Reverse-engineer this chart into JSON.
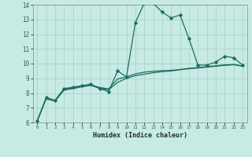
{
  "title": "",
  "xlabel": "Humidex (Indice chaleur)",
  "bg_color": "#c8eae4",
  "grid_color": "#a8d4cc",
  "line_color": "#1a6e5e",
  "xlim": [
    -0.5,
    23.5
  ],
  "ylim": [
    6,
    14
  ],
  "xticks": [
    0,
    1,
    2,
    3,
    4,
    5,
    6,
    7,
    8,
    9,
    10,
    11,
    12,
    13,
    14,
    15,
    16,
    17,
    18,
    19,
    20,
    21,
    22,
    23
  ],
  "yticks": [
    6,
    7,
    8,
    9,
    10,
    11,
    12,
    13,
    14
  ],
  "line1_x": [
    0,
    1,
    2,
    3,
    4,
    5,
    6,
    7,
    8,
    9,
    10,
    11,
    12,
    13,
    14,
    15,
    16,
    17,
    18,
    19,
    20,
    21,
    22,
    23
  ],
  "line1_y": [
    6.1,
    7.7,
    7.5,
    8.3,
    8.4,
    8.5,
    8.6,
    8.3,
    8.1,
    9.5,
    9.1,
    12.8,
    14.1,
    14.1,
    13.5,
    13.1,
    13.3,
    11.7,
    9.9,
    9.9,
    10.1,
    10.5,
    10.4,
    9.9
  ],
  "line2_x": [
    0,
    1,
    2,
    3,
    4,
    5,
    6,
    7,
    8,
    9,
    10,
    11,
    12,
    13,
    14,
    15,
    16,
    17,
    18,
    19,
    20,
    21,
    22,
    23
  ],
  "line2_y": [
    6.1,
    7.6,
    7.45,
    8.2,
    8.3,
    8.42,
    8.52,
    8.32,
    8.22,
    8.72,
    9.0,
    9.18,
    9.28,
    9.38,
    9.45,
    9.5,
    9.58,
    9.65,
    9.7,
    9.76,
    9.82,
    9.88,
    9.92,
    9.82
  ],
  "line3_x": [
    0,
    1,
    2,
    3,
    4,
    5,
    6,
    7,
    8,
    9,
    10,
    11,
    12,
    13,
    14,
    15,
    16,
    17,
    18,
    19,
    20,
    21,
    22,
    23
  ],
  "line3_y": [
    6.1,
    7.65,
    7.5,
    8.25,
    8.35,
    8.45,
    8.55,
    8.38,
    8.28,
    8.95,
    9.1,
    9.3,
    9.42,
    9.48,
    9.52,
    9.54,
    9.6,
    9.68,
    9.73,
    9.79,
    9.85,
    9.91,
    9.94,
    9.84
  ]
}
